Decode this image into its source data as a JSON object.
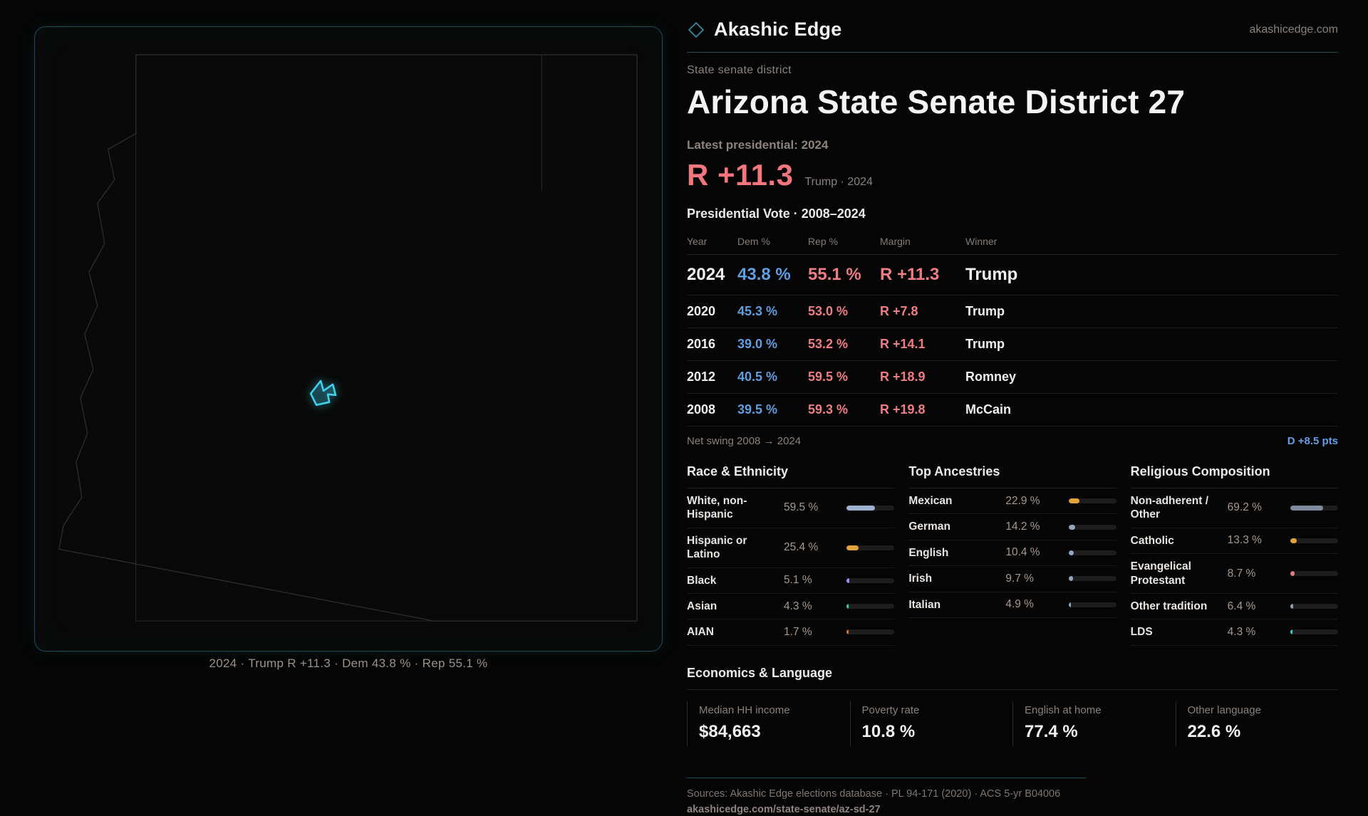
{
  "brand": {
    "name": "Akashic Edge",
    "site": "akashicedge.com",
    "logo_icon": "diamond-icon"
  },
  "page": {
    "kicker": "State senate district",
    "title": "Arizona State Senate District 27",
    "latest_label": "Latest presidential: 2024",
    "headline": {
      "margin": "R +11.3",
      "context": "Trump · 2024"
    }
  },
  "vote_table": {
    "title": "Presidential Vote · 2008–2024",
    "columns": [
      "Year",
      "Dem %",
      "Rep %",
      "Margin",
      "Winner"
    ],
    "rows": [
      {
        "year": "2024",
        "dem": "43.8 %",
        "rep": "55.1 %",
        "margin": "R +11.3",
        "winner": "Trump"
      },
      {
        "year": "2020",
        "dem": "45.3 %",
        "rep": "53.0 %",
        "margin": "R +7.8",
        "winner": "Trump"
      },
      {
        "year": "2016",
        "dem": "39.0 %",
        "rep": "53.2 %",
        "margin": "R +14.1",
        "winner": "Trump"
      },
      {
        "year": "2012",
        "dem": "40.5 %",
        "rep": "59.5 %",
        "margin": "R +18.9",
        "winner": "Romney"
      },
      {
        "year": "2008",
        "dem": "39.5 %",
        "rep": "59.3 %",
        "margin": "R +19.8",
        "winner": "McCain"
      }
    ],
    "net_swing": {
      "label": "Net swing 2008 → 2024",
      "value": "D +8.5 pts"
    }
  },
  "demographics": {
    "race": {
      "title": "Race & Ethnicity",
      "rows": [
        {
          "label": "White, non-Hispanic",
          "value": "59.5 %",
          "pct": 59.5,
          "color": "#9db3cd"
        },
        {
          "label": "Hispanic or Latino",
          "value": "25.4 %",
          "pct": 25.4,
          "color": "#e3a33b"
        },
        {
          "label": "Black",
          "value": "5.1 %",
          "pct": 5.1,
          "color": "#9c8df2"
        },
        {
          "label": "Asian",
          "value": "4.3 %",
          "pct": 4.3,
          "color": "#32cfa8"
        },
        {
          "label": "AIAN",
          "value": "1.7 %",
          "pct": 1.7,
          "color": "#c0782f"
        }
      ]
    },
    "ancestry": {
      "title": "Top Ancestries",
      "rows": [
        {
          "label": "Mexican",
          "value": "22.9 %",
          "pct": 22.9,
          "color": "#e3a33b"
        },
        {
          "label": "German",
          "value": "14.2 %",
          "pct": 14.2,
          "color": "#93a7bf"
        },
        {
          "label": "English",
          "value": "10.4 %",
          "pct": 10.4,
          "color": "#93a7bf"
        },
        {
          "label": "Irish",
          "value": "9.7 %",
          "pct": 9.7,
          "color": "#93a7bf"
        },
        {
          "label": "Italian",
          "value": "4.9 %",
          "pct": 4.9,
          "color": "#93a7bf"
        }
      ]
    },
    "religion": {
      "title": "Religious Composition",
      "rows": [
        {
          "label": "Non-adherent / Other",
          "value": "69.2 %",
          "pct": 69.2,
          "color": "#7f8b9d"
        },
        {
          "label": "Catholic",
          "value": "13.3 %",
          "pct": 13.3,
          "color": "#e3a33b"
        },
        {
          "label": "Evangelical Protestant",
          "value": "8.7 %",
          "pct": 8.7,
          "color": "#e27f85"
        },
        {
          "label": "Other tradition",
          "value": "6.4 %",
          "pct": 6.4,
          "color": "#93a0b0"
        },
        {
          "label": "LDS",
          "value": "4.3 %",
          "pct": 4.3,
          "color": "#35cfc0"
        }
      ]
    }
  },
  "economics": {
    "title": "Economics & Language",
    "stats": [
      {
        "label": "Median HH income",
        "value": "$84,663"
      },
      {
        "label": "Poverty rate",
        "value": "10.8 %"
      },
      {
        "label": "English at home",
        "value": "77.4 %"
      },
      {
        "label": "Other language",
        "value": "22.6 %"
      }
    ]
  },
  "map": {
    "caption": "2024 · Trump R +11.3 · Dem 43.8 % · Rep 55.1 %"
  },
  "footer": {
    "sources": "Sources: Akashic Edge elections database · PL 94-171 (2020) · ACS 5-yr B04006",
    "permalink": "akashicedge.com/state-senate/az-sd-27"
  },
  "colors": {
    "dem_blue": "#5f9ee0",
    "rep_red": "#ef7d84",
    "accent_teal": "#3ed2ee",
    "swing_blue": "#639fe8"
  }
}
